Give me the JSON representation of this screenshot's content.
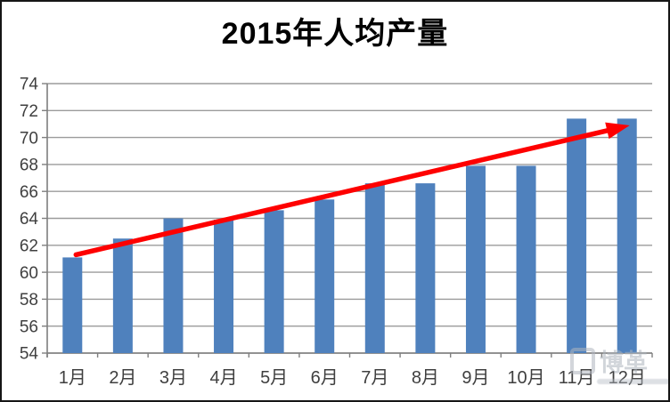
{
  "title": "2015年人均产量",
  "watermark": {
    "text": "博革"
  },
  "colors": {
    "bar": "#4F81BD",
    "trend_arrow": "#FE0000",
    "gridline": "#9B9B9B",
    "axis": "#7F7F7F",
    "tick_label": "#3F3F3F",
    "title_text": "#000000",
    "background": "#FFFFFF",
    "border": "#161616"
  },
  "chart_data": {
    "type": "bar",
    "title": "2015年人均产量",
    "categories": [
      "1月",
      "2月",
      "3月",
      "4月",
      "5月",
      "6月",
      "7月",
      "8月",
      "9月",
      "10月",
      "11月",
      "12月"
    ],
    "values": [
      61.1,
      62.5,
      64.0,
      63.9,
      64.6,
      65.4,
      66.6,
      66.6,
      67.9,
      67.9,
      71.4,
      71.4
    ],
    "xlabel": "",
    "ylabel": "",
    "ylim": [
      54,
      74
    ],
    "ytick_step": 2,
    "yticks": [
      74,
      72,
      70,
      68,
      66,
      64,
      62,
      60,
      58,
      56,
      54
    ],
    "grid": "horizontal",
    "legend": "none",
    "bar_color": "#4F81BD",
    "trend_arrow": {
      "from_category": "1月",
      "from_value": 61.3,
      "to_category": "12月",
      "to_value": 70.9,
      "color": "#FE0000",
      "style": "straight-arrow"
    }
  }
}
